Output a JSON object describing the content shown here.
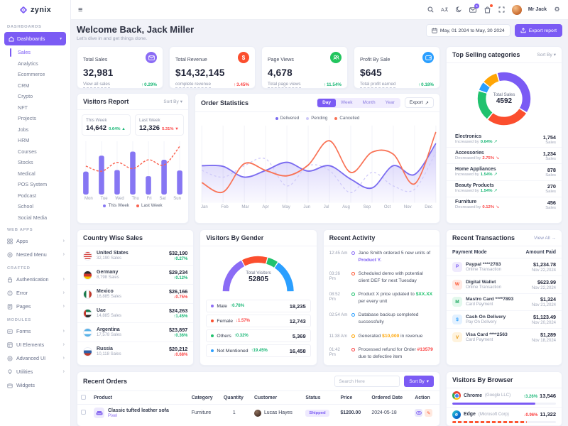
{
  "colors": {
    "primary": "#7b5bf4",
    "success": "#19b776",
    "danger": "#fb4242",
    "orange": "#fd5631",
    "amber": "#ffa505",
    "info": "#2b9fff",
    "green": "#21c26e"
  },
  "brand": {
    "name": "zynix"
  },
  "topbar": {
    "user": "Mr Jack",
    "mail_badge": "5"
  },
  "sidebar": {
    "sections": {
      "dashboards": "DASHBOARDS",
      "webapps": "WEB APPS",
      "crafted": "CRAFTED",
      "modules": "MODULES"
    },
    "dashboards_label": "Dashboards",
    "dash_items": [
      "Sales",
      "Analytics",
      "Ecommerce",
      "CRM",
      "Crypto",
      "NFT",
      "Projects",
      "Jobs",
      "HRM",
      "Courses",
      "Stocks",
      "Medical",
      "POS System",
      "Podcast",
      "School",
      "Social Media"
    ],
    "webapps_items": [
      "Apps",
      "Nested Menu"
    ],
    "crafted_items": [
      "Authentication",
      "Error",
      "Pages"
    ],
    "modules_items": [
      "Forms",
      "UI Elements",
      "Advanced UI",
      "Utilities",
      "Widgets"
    ]
  },
  "welcome": {
    "title": "Welcome Back, Jack Miller",
    "subtitle": "Let's dive in and get things done.",
    "date_range": "May, 01 2024 to May, 30 2024",
    "export_label": "Export report"
  },
  "stats": [
    {
      "label": "Total Sales",
      "value": "32,981",
      "link": "View all sales",
      "change": "0.29%",
      "trend": "up",
      "tone": "success"
    },
    {
      "label": "Total Revenue",
      "value": "$14,32,145",
      "link": "complete revenue",
      "change": "3.45%",
      "trend": "up",
      "tone": "danger"
    },
    {
      "label": "Page Views",
      "value": "4,678",
      "link": "Total page views",
      "change": "11.54%",
      "trend": "up",
      "tone": "success"
    },
    {
      "label": "Profit By Sale",
      "value": "$645",
      "link": "Total profit earned",
      "change": "0.18%",
      "trend": "up",
      "tone": "success"
    }
  ],
  "top_selling": {
    "title": "Top Selling categories",
    "sort_label": "Sort By",
    "center_label": "Total Sales",
    "center_value": "4592",
    "items": [
      {
        "name": "Electronics",
        "note": "Increased by",
        "change": "0.64%",
        "trend": "up",
        "count": "1,754",
        "unit": "Sales"
      },
      {
        "name": "Accessories",
        "note": "Decreased by",
        "change": "2.75%",
        "trend": "down",
        "count": "1,234",
        "unit": "Sales"
      },
      {
        "name": "Home Appliances",
        "note": "Increased by",
        "change": "1.54%",
        "trend": "up",
        "count": "878",
        "unit": "Sales"
      },
      {
        "name": "Beauty Products",
        "note": "Increased by",
        "change": "1.54%",
        "trend": "up",
        "count": "270",
        "unit": "Sales"
      },
      {
        "name": "Furniture",
        "note": "Decreased by",
        "change": "0.12%",
        "trend": "down",
        "count": "456",
        "unit": "Sales"
      }
    ]
  },
  "visitors_report": {
    "title": "Visitors Report",
    "sort_label": "Sort By",
    "this_week": {
      "label": "This Week",
      "value": "14,642",
      "change": "0.64%"
    },
    "last_week": {
      "label": "Last Week",
      "value": "12,326",
      "change": "5.31%"
    },
    "legend": [
      "This Week",
      "Last Week"
    ]
  },
  "order_statistics": {
    "title": "Order Statistics",
    "tabs": [
      "Day",
      "Week",
      "Month",
      "Year"
    ],
    "active_tab": "Day",
    "export_label": "Export",
    "legend": [
      "Delivered",
      "Pending",
      "Cancelled"
    ]
  },
  "country_sales": {
    "title": "Country Wise Sales",
    "rows": [
      {
        "country": "United States",
        "sales": "32,190 Sales",
        "amount": "$32,190",
        "change": "0.27%",
        "trend": "up"
      },
      {
        "country": "Germany",
        "sales": "8,798 Sales",
        "amount": "$29,234",
        "change": "0.12%",
        "trend": "up"
      },
      {
        "country": "Mexico",
        "sales": "16,885 Sales",
        "amount": "$26,166",
        "change": "0.75%",
        "trend": "down"
      },
      {
        "country": "Uae",
        "sales": "14,885 Sales",
        "amount": "$24,263",
        "change": "1.45%",
        "trend": "up"
      },
      {
        "country": "Argentina",
        "sales": "17,578 Sales",
        "amount": "$23,897",
        "change": "0.36%",
        "trend": "up"
      },
      {
        "country": "Russia",
        "sales": "10,118 Sales",
        "amount": "$20,212",
        "change": "0.68%",
        "trend": "down"
      }
    ]
  },
  "gender": {
    "title": "Visitors By Gender",
    "center_label": "Total Visitors",
    "center_value": "52805",
    "rows": [
      {
        "label": "Male",
        "change": "0.78%",
        "trend": "up",
        "value": "18,235"
      },
      {
        "label": "Female",
        "change": "1.57%",
        "trend": "down",
        "value": "12,743"
      },
      {
        "label": "Others",
        "change": "0.32%",
        "trend": "up",
        "value": "5,369"
      },
      {
        "label": "Not Mentioned",
        "change": "19.45%",
        "trend": "up",
        "value": "16,458"
      }
    ]
  },
  "activity": {
    "title": "Recent Activity",
    "items": [
      {
        "time": "12:45 Am",
        "pre": "Jane Smith ordered 5 new units of ",
        "hl": "Product Y.",
        "post": ""
      },
      {
        "time": "03:26 Pm",
        "pre": "Scheduled demo with potential client DEF for next Tuesday",
        "hl": "",
        "post": ""
      },
      {
        "time": "08:52 Pm",
        "pre": "Product X price updated to ",
        "hl": "$XX.XX",
        "post": " per every unit"
      },
      {
        "time": "02:54 Am",
        "pre": "Database backup completed successfully",
        "hl": "",
        "post": ""
      },
      {
        "time": "11:38 Am",
        "pre": "Generated ",
        "hl": "$10,000",
        "post": " in revenue"
      },
      {
        "time": "01:42 Pm",
        "pre": "Processed refund for Order ",
        "hl": "#13579",
        "post": " due to defective item"
      }
    ]
  },
  "transactions": {
    "title": "Recent Transactions",
    "view_all": "View All",
    "col_mode": "Payment Mode",
    "col_amount": "Amount Paid",
    "rows": [
      {
        "mode": "Paypal ****2783",
        "type": "Online Transaction",
        "amount": "$1,234.78",
        "date": "Nov 22,2024"
      },
      {
        "mode": "Digital Wallet",
        "type": "Online Transaction",
        "amount": "$623.99",
        "date": "Nov 22,2024"
      },
      {
        "mode": "Mastro Card ****7893",
        "type": "Card Payment",
        "amount": "$1,324",
        "date": "Nov 21,2024"
      },
      {
        "mode": "Cash On Delivery",
        "type": "Pay On Delivery",
        "amount": "$1,123.49",
        "date": "Nov 20,2024"
      },
      {
        "mode": "Visa Card ****2563",
        "type": "Card Payment",
        "amount": "$1,289",
        "date": "Nov 18,2024"
      }
    ]
  },
  "orders": {
    "title": "Recent Orders",
    "search_placeholder": "Search Here",
    "sort_label": "Sort By",
    "headers": [
      "Product",
      "Category",
      "Quantity",
      "Customer",
      "Status",
      "Price",
      "Ordered Date",
      "Action"
    ],
    "rows": [
      {
        "product": "Classic tufted leather sofa",
        "variant": "Pixel",
        "category": "Furniture",
        "quantity": "1",
        "customer": "Lucas Hayes",
        "status": "Shipped",
        "price": "$1200.00",
        "date": "2024-05-18"
      }
    ]
  },
  "browsers": {
    "title": "Visitors By Browser",
    "rows": [
      {
        "name": "Chrome",
        "company": "(Google LLC)",
        "change": "3.26%",
        "trend": "up",
        "value": "13,546"
      },
      {
        "name": "Edge",
        "company": "(Microsoft Corp)",
        "change": "0.96%",
        "trend": "down",
        "value": "11,322"
      }
    ]
  },
  "chart_data": [
    {
      "id": "visitors",
      "type": "bar",
      "categories": [
        "Mon",
        "Tue",
        "Wed",
        "Thu",
        "Fri",
        "Sat",
        "Sun"
      ],
      "series": [
        {
          "name": "This Week",
          "type": "bar",
          "color": "#8676f3",
          "values": [
            45,
            76,
            48,
            84,
            36,
            68,
            47
          ]
        },
        {
          "name": "Last Week",
          "type": "line",
          "style": "dashed",
          "color": "#fa6250",
          "values": [
            55,
            45,
            62,
            50,
            67,
            57,
            93
          ]
        }
      ],
      "ylim": [
        0,
        100
      ],
      "legend_position": "bottom"
    },
    {
      "id": "orders",
      "type": "line",
      "x": [
        "Jan",
        "Feb",
        "Mar",
        "Apr",
        "May",
        "Jun",
        "Jul",
        "Aug",
        "Sep",
        "Oct",
        "Nov",
        "Dec"
      ],
      "series": [
        {
          "name": "Delivered",
          "color": "#7b6cf0",
          "fill": true,
          "values": [
            55,
            54,
            38,
            48,
            60,
            47,
            55,
            35,
            22,
            55,
            42,
            88
          ]
        },
        {
          "name": "Pending",
          "color": "#cfcaf9",
          "style": "dashed",
          "values": [
            48,
            38,
            55,
            65,
            25,
            55,
            48,
            15,
            45,
            25,
            20,
            75
          ]
        },
        {
          "name": "Cancelled",
          "color": "#f97356",
          "values": [
            30,
            16,
            58,
            48,
            40,
            56,
            92,
            45,
            75,
            72,
            28,
            105
          ]
        }
      ],
      "ylim": [
        0,
        112
      ],
      "grid": "vertical"
    },
    {
      "id": "top-categories",
      "type": "donut",
      "total": 4592,
      "start_angle_deg": -50,
      "segments": [
        {
          "label": "Furniture",
          "value": 456,
          "color": "#ffa505"
        },
        {
          "label": "Electronics",
          "value": 1754,
          "color": "#7b5bf4"
        },
        {
          "label": "Accessories",
          "value": 1234,
          "color": "#fb4e2e"
        },
        {
          "label": "Home Appliances",
          "value": 878,
          "color": "#21c26e"
        },
        {
          "label": "Beauty Products",
          "value": 270,
          "color": "#2b9fff"
        }
      ]
    },
    {
      "id": "gender-gauge",
      "type": "gauge",
      "total": 52805,
      "segments": [
        {
          "label": "Male",
          "value": 18235,
          "color": "#8b6cf5"
        },
        {
          "label": "Female",
          "value": 12743,
          "color": "#fb4e2e"
        },
        {
          "label": "Others",
          "value": 5369,
          "color": "#21c26e"
        },
        {
          "label": "Not Mentioned",
          "value": 16458,
          "color": "#2b9fff"
        }
      ]
    },
    {
      "id": "browser-usage",
      "type": "progress",
      "values": [
        {
          "label": "Chrome",
          "pct": 80,
          "color": "#7b5bf4",
          "style": "solid"
        },
        {
          "label": "Edge",
          "pct": 72,
          "color": "#fd5631",
          "style": "dashed"
        }
      ]
    }
  ]
}
